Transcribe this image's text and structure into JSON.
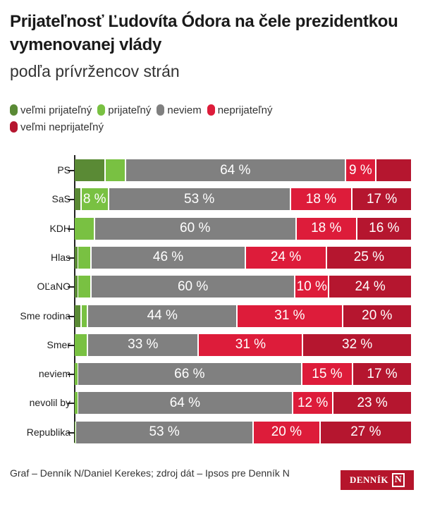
{
  "chart_data": {
    "type": "bar",
    "orientation": "horizontal",
    "stacked": true,
    "title": "Prijateľnosť Ľudovíta Ódora na čele prezidentkou vymenovanej vlády",
    "subtitle": "podľa prívržencov strán",
    "xlabel": "",
    "ylabel": "",
    "xlim": [
      0,
      100
    ],
    "legend_position": "top-left",
    "categories": [
      "PS",
      "SaS",
      "KDH",
      "Hlas",
      "OĽaNO",
      "Sme rodina",
      "Smer",
      "neviem",
      "nevolil by",
      "Republika"
    ],
    "series": [
      {
        "name": "veľmi prijateľný",
        "color": "#5a8a35",
        "values": [
          9,
          2,
          0,
          1,
          1,
          2,
          0,
          0,
          0,
          0
        ],
        "labels": [
          "",
          "",
          "",
          "",
          "",
          "",
          "",
          "",
          "",
          ""
        ]
      },
      {
        "name": "prijateľný",
        "color": "#79c142",
        "values": [
          6,
          8,
          6,
          4,
          4,
          2,
          4,
          1,
          1,
          0.5
        ],
        "labels": [
          "",
          "8 %",
          "",
          "",
          "",
          "",
          "",
          "",
          "",
          ""
        ]
      },
      {
        "name": "neviem",
        "color": "#808080",
        "values": [
          64,
          53,
          60,
          46,
          60,
          44,
          33,
          66,
          64,
          53
        ],
        "labels": [
          "64 %",
          "53 %",
          "60 %",
          "46 %",
          "60 %",
          "44 %",
          "33 %",
          "66 %",
          "64 %",
          "53 %"
        ]
      },
      {
        "name": "neprijateľný",
        "color": "#dd1c3a",
        "values": [
          9,
          18,
          18,
          24,
          10,
          31,
          31,
          15,
          12,
          20
        ],
        "labels": [
          "9 %",
          "18 %",
          "18 %",
          "24 %",
          "10 %",
          "31 %",
          "31 %",
          "15 %",
          "12 %",
          "20 %"
        ]
      },
      {
        "name": "veľmi neprijateľný",
        "color": "#b5162f",
        "values": [
          10,
          17,
          16,
          25,
          24,
          20,
          32,
          17,
          23,
          27
        ],
        "labels": [
          "",
          "17 %",
          "16 %",
          "25 %",
          "24 %",
          "20 %",
          "32 %",
          "17 %",
          "23 %",
          "27 %"
        ]
      }
    ]
  },
  "header": {
    "title": "Prijateľnosť Ľudovíta Ódora na čele prezidentkou vymenovanej vlády",
    "subtitle": "podľa prívržencov strán"
  },
  "footer": {
    "credit": "Graf – Denník N/Daniel Kerekes; zdroj dát – Ipsos pre Denník N",
    "logo_text": "DENNÍK",
    "logo_mark": "N"
  }
}
